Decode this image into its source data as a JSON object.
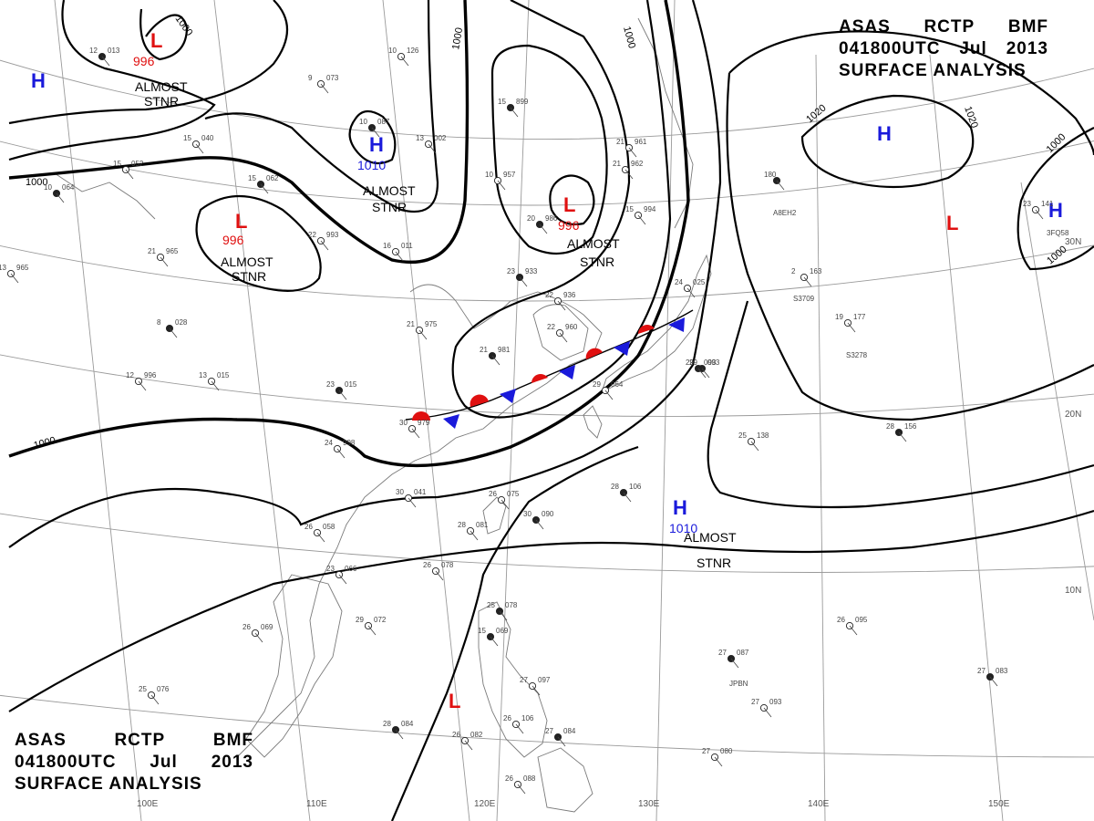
{
  "header": {
    "line1": [
      "ASAS",
      "RCTP",
      "BMF"
    ],
    "line2": [
      "041800UTC",
      "Jul",
      "2013"
    ],
    "line3": "SURFACE ANALYSIS"
  },
  "isobar_labels": [
    "1000",
    "1000",
    "1000",
    "1000",
    "1020",
    "1020",
    "1000",
    "1000",
    "1000"
  ],
  "pressure_centers": [
    {
      "type": "L",
      "value": "996",
      "note": "ALMOST STNR"
    },
    {
      "type": "H",
      "value": "1010",
      "note": "ALMOST STNR"
    },
    {
      "type": "L",
      "value": "996",
      "note": "ALMOST STNR"
    },
    {
      "type": "L",
      "value": "996",
      "note": "ALMOST STNR"
    },
    {
      "type": "H",
      "value": "1010",
      "note": "ALMOST STNR"
    },
    {
      "type": "H",
      "value": "",
      "note": ""
    },
    {
      "type": "H",
      "value": "",
      "note": ""
    },
    {
      "type": "H",
      "value": "",
      "note": ""
    },
    {
      "type": "L",
      "value": "",
      "note": ""
    },
    {
      "type": "L",
      "value": "",
      "note": ""
    }
  ],
  "almost_stnr": [
    "ALMOST",
    "STNR"
  ],
  "latitudes": [
    "30N",
    "20N",
    "10N"
  ],
  "longitudes": [
    "100E",
    "110E",
    "120E",
    "130E",
    "140E",
    "150E"
  ],
  "ship_ids": [
    "A8EH2",
    "3FQ58",
    "S3709",
    "S3278",
    "JPBN"
  ],
  "stations": [
    {
      "t": "12",
      "p": "013"
    },
    {
      "t": "9",
      "p": "073"
    },
    {
      "t": "10",
      "p": "126"
    },
    {
      "t": "10",
      "p": "087"
    },
    {
      "t": "15",
      "p": "040"
    },
    {
      "t": "13",
      "p": "002"
    },
    {
      "t": "15",
      "p": "899"
    },
    {
      "t": "21",
      "p": "961"
    },
    {
      "t": "15",
      "p": "052"
    },
    {
      "t": "15",
      "p": "062"
    },
    {
      "t": "10",
      "p": "957"
    },
    {
      "t": "21",
      "p": "962"
    },
    {
      "t": "10",
      "p": "064"
    },
    {
      "t": "22",
      "p": "993"
    },
    {
      "t": "16",
      "p": "011"
    },
    {
      "t": "20",
      "p": "986"
    },
    {
      "t": "15",
      "p": "994"
    },
    {
      "t": "21",
      "p": "965"
    },
    {
      "t": "23",
      "p": "933"
    },
    {
      "t": "22",
      "p": "936"
    },
    {
      "t": "21",
      "p": "975"
    },
    {
      "t": "21",
      "p": "981"
    },
    {
      "t": "22",
      "p": "960"
    },
    {
      "t": "13",
      "p": "015"
    },
    {
      "t": "23",
      "p": "015"
    },
    {
      "t": "30",
      "p": "979"
    },
    {
      "t": "24",
      "p": "998"
    },
    {
      "t": "29",
      "p": "093"
    },
    {
      "t": "30",
      "p": "041"
    },
    {
      "t": "26",
      "p": "075"
    },
    {
      "t": "28",
      "p": "106"
    },
    {
      "t": "26",
      "p": "058"
    },
    {
      "t": "28",
      "p": "081"
    },
    {
      "t": "30",
      "p": "090"
    },
    {
      "t": "23",
      "p": "066"
    },
    {
      "t": "26",
      "p": "078"
    },
    {
      "t": "25",
      "p": "078"
    },
    {
      "t": "29",
      "p": "072"
    },
    {
      "t": "26",
      "p": "069"
    },
    {
      "t": "15",
      "p": "069"
    },
    {
      "t": "25",
      "p": "076"
    },
    {
      "t": "27",
      "p": "097"
    },
    {
      "t": "28",
      "p": "084"
    },
    {
      "t": "26",
      "p": "082"
    },
    {
      "t": "26",
      "p": "106"
    },
    {
      "t": "27",
      "p": "084"
    },
    {
      "t": "26",
      "p": "088"
    },
    {
      "t": "25",
      "p": "138"
    },
    {
      "t": "28",
      "p": "156"
    },
    {
      "t": "19",
      "p": "177"
    },
    {
      "t": "26",
      "p": "095"
    },
    {
      "t": "27",
      "p": "087"
    },
    {
      "t": "27",
      "p": "093"
    },
    {
      "t": "27",
      "p": "080"
    },
    {
      "t": "27",
      "p": "083"
    },
    {
      "t": "23",
      "p": "141"
    },
    {
      "t": "2",
      "p": "163"
    },
    {
      "t": "180",
      "p": ""
    },
    {
      "t": "12",
      "p": "996"
    },
    {
      "t": "13",
      "p": "965"
    },
    {
      "t": "8",
      "p": "028"
    },
    {
      "t": "24",
      "p": "025"
    },
    {
      "t": "29",
      "p": "064"
    },
    {
      "t": "29",
      "p": "093"
    }
  ]
}
